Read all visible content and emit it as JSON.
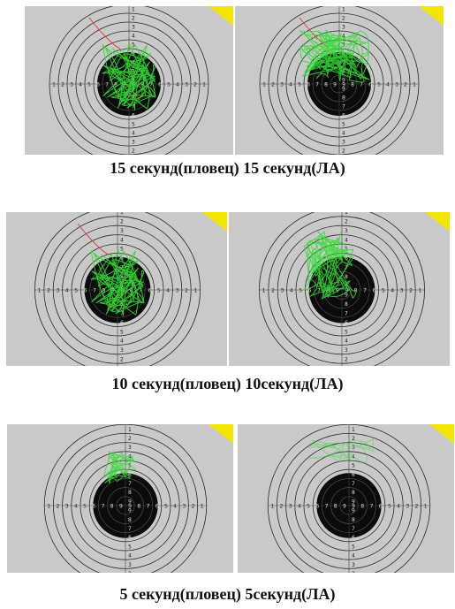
{
  "captions": {
    "row1": "15 секунд(пловец) 15 секунд(ЛА)",
    "row2": "10 секунд(пловец) 10секунд(ЛА)",
    "row3": "5 секунд(пловец) 5секунд(ЛА)"
  },
  "target": {
    "ring_numbers": [
      "1",
      "2",
      "3",
      "4",
      "5",
      "6",
      "7",
      "8",
      "9",
      "10"
    ],
    "background_color": "#c9c9c9",
    "ring_color": "#2a2a2a",
    "bull_color": "#0b0b0b",
    "trace_color": "#33dd33",
    "start_trace_color": "#dd4433",
    "corner_marker_color": "#f2e600"
  },
  "panels": [
    {
      "id": "15s-swimmer",
      "trace_spread": "dense-centered"
    },
    {
      "id": "15s-athlete",
      "trace_spread": "dense-upper"
    },
    {
      "id": "10s-swimmer",
      "trace_spread": "dense-centered"
    },
    {
      "id": "10s-athlete",
      "trace_spread": "upper-left"
    },
    {
      "id": "5s-swimmer",
      "trace_spread": "upper-sparse"
    },
    {
      "id": "5s-athlete",
      "trace_spread": "faint-top"
    }
  ]
}
